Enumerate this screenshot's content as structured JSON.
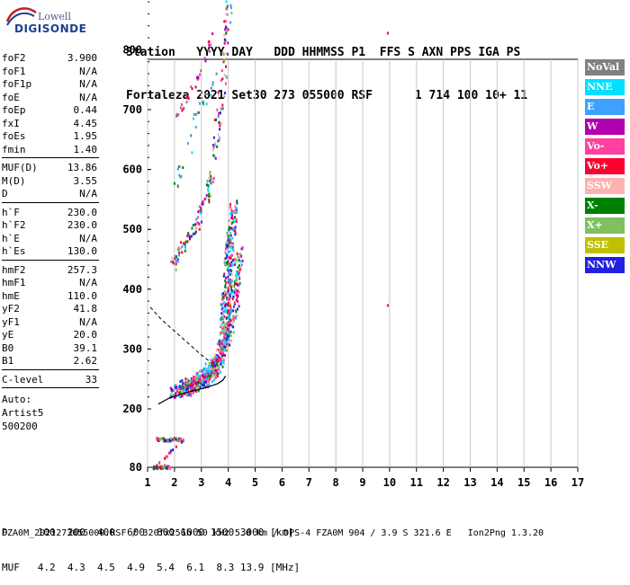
{
  "logo": {
    "line1": "Lowell",
    "line2": "DIGISONDE"
  },
  "header": {
    "line1": "Station   YYYY DAY   DDD HHMMSS P1  FFS S AXN PPS IGA PS",
    "line2": "Fortaleza 2021 Set30 273 055000 RSF      1 714 100 10+ 11"
  },
  "params": {
    "group1": [
      {
        "label": "foF2",
        "value": "3.900"
      },
      {
        "label": "foF1",
        "value": "N/A"
      },
      {
        "label": "foF1p",
        "value": "N/A"
      },
      {
        "label": "foE",
        "value": "N/A"
      },
      {
        "label": "foEp",
        "value": "0.44"
      },
      {
        "label": "fxI",
        "value": "4.45"
      },
      {
        "label": "foEs",
        "value": "1.95"
      },
      {
        "label": "fmin",
        "value": "1.40"
      }
    ],
    "group2": [
      {
        "label": "MUF(D)",
        "value": "13.86"
      },
      {
        "label": "M(D)",
        "value": "3.55"
      },
      {
        "label": "D",
        "value": "N/A"
      }
    ],
    "group3": [
      {
        "label": "h`F",
        "value": "230.0"
      },
      {
        "label": "h`F2",
        "value": "230.0"
      },
      {
        "label": "h`E",
        "value": "N/A"
      },
      {
        "label": "h`Es",
        "value": "130.0"
      }
    ],
    "group4": [
      {
        "label": "hmF2",
        "value": "257.3"
      },
      {
        "label": "hmF1",
        "value": "N/A"
      },
      {
        "label": "hmE",
        "value": "110.0"
      },
      {
        "label": "yF2",
        "value": "41.8"
      },
      {
        "label": "yF1",
        "value": "N/A"
      },
      {
        "label": "yE",
        "value": "20.0"
      },
      {
        "label": "B0",
        "value": "39.1"
      },
      {
        "label": "B1",
        "value": "2.62"
      }
    ],
    "clevel": {
      "label": "C-level",
      "value": "33"
    },
    "auto": [
      "Auto:",
      "Artist5",
      "500200"
    ]
  },
  "legend": [
    {
      "label": "NoVal",
      "color": "#808080"
    },
    {
      "label": "NNE",
      "color": "#00e0ff"
    },
    {
      "label": "E",
      "color": "#40a0ff"
    },
    {
      "label": "W",
      "color": "#b000b0"
    },
    {
      "label": "Vo-",
      "color": "#ff40a0"
    },
    {
      "label": "Vo+",
      "color": "#ff0030"
    },
    {
      "label": "SSW",
      "color": "#ffb0b0"
    },
    {
      "label": "X-",
      "color": "#008000"
    },
    {
      "label": "X+",
      "color": "#80c060"
    },
    {
      "label": "SSE",
      "color": "#c0c000"
    },
    {
      "label": "NNW",
      "color": "#2020e0"
    }
  ],
  "dtable": {
    "line1": "D     100  200  400  600  800 1000 1500 3000 [km]",
    "line2": "MUF   4.2  4.3  4.5  4.9  5.4  6.1  8.3 13.9 [MHz]"
  },
  "footer": "FZA0M_2021273055000.RSF / 320fx256h 50 kHz 5.0 km / DPS-4 FZA0M 904 / 3.9 S 321.6 E   Ion2Png 1.3.20",
  "chart_data": {
    "type": "scatter",
    "title": "",
    "xlabel": "",
    "ylabel": "",
    "xlim": [
      1,
      17
    ],
    "ylim": [
      80,
      900
    ],
    "xticks": [
      "1",
      "2",
      "3",
      "4",
      "5",
      "6",
      "7",
      "8",
      "9",
      "10",
      "11",
      "12",
      "13",
      "14",
      "15",
      "16",
      "17"
    ],
    "yticks": [
      "80",
      "200",
      "300",
      "400",
      "500",
      "600",
      "700",
      "800",
      "900"
    ],
    "traces": [
      {
        "name": "Es",
        "points": [
          [
            1.3,
            140
          ],
          [
            1.5,
            140
          ],
          [
            1.7,
            138
          ],
          [
            1.9,
            140
          ],
          [
            2.1,
            140
          ],
          [
            2.3,
            138
          ],
          [
            1.2,
            82
          ],
          [
            1.4,
            82
          ],
          [
            1.6,
            84
          ],
          [
            1.8,
            82
          ]
        ]
      },
      {
        "name": "F-O",
        "points": [
          [
            1.9,
            230
          ],
          [
            2.2,
            232
          ],
          [
            2.5,
            236
          ],
          [
            2.8,
            242
          ],
          [
            3.1,
            250
          ],
          [
            3.3,
            258
          ],
          [
            3.5,
            270
          ],
          [
            3.7,
            290
          ],
          [
            3.8,
            320
          ],
          [
            3.85,
            350
          ],
          [
            3.9,
            380
          ],
          [
            3.95,
            420
          ],
          [
            4.0,
            460
          ],
          [
            4.1,
            500
          ],
          [
            4.2,
            540
          ]
        ]
      },
      {
        "name": "F-X",
        "points": [
          [
            2.3,
            240
          ],
          [
            2.6,
            245
          ],
          [
            2.9,
            255
          ],
          [
            3.2,
            265
          ],
          [
            3.5,
            280
          ],
          [
            3.8,
            300
          ],
          [
            4.0,
            330
          ],
          [
            4.2,
            370
          ],
          [
            4.3,
            420
          ],
          [
            4.4,
            470
          ]
        ]
      },
      {
        "name": "F-2hop",
        "points": [
          [
            1.9,
            440
          ],
          [
            2.2,
            470
          ],
          [
            2.6,
            490
          ],
          [
            2.9,
            520
          ],
          [
            3.2,
            560
          ],
          [
            3.4,
            600
          ],
          [
            3.6,
            680
          ],
          [
            3.8,
            760
          ],
          [
            3.9,
            830
          ],
          [
            4.0,
            880
          ]
        ]
      },
      {
        "name": "F-3hop",
        "points": [
          [
            2.0,
            690
          ],
          [
            2.3,
            710
          ],
          [
            2.8,
            750
          ],
          [
            3.2,
            800
          ],
          [
            3.5,
            840
          ]
        ]
      },
      {
        "name": "upper",
        "points": [
          [
            2.0,
            560
          ],
          [
            2.2,
            600
          ],
          [
            2.5,
            640
          ],
          [
            2.8,
            700
          ],
          [
            3.2,
            720
          ],
          [
            3.6,
            760
          ]
        ]
      },
      {
        "name": "isolated",
        "points": [
          [
            9.9,
            830
          ],
          [
            9.9,
            375
          ]
        ]
      }
    ],
    "profile_curve": [
      [
        1.4,
        208
      ],
      [
        1.8,
        218
      ],
      [
        2.5,
        228
      ],
      [
        3.2,
        236
      ],
      [
        3.6,
        242
      ],
      [
        3.8,
        248
      ],
      [
        3.9,
        255
      ]
    ],
    "dashed_curve": [
      [
        1.1,
        370
      ],
      [
        1.5,
        350
      ],
      [
        2.0,
        330
      ],
      [
        2.5,
        310
      ],
      [
        3.0,
        290
      ],
      [
        3.4,
        276
      ]
    ]
  }
}
